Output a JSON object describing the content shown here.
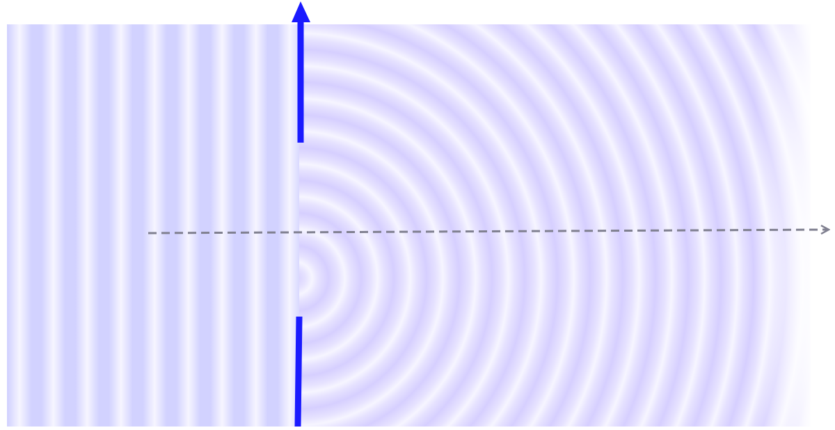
{
  "diagram": {
    "colors": {
      "barrier": "#1a1aff",
      "wave_dark": "#d2d2ff",
      "wave_light": "#f6f5ff",
      "diffracted_base": "#e6e2ff",
      "diffracted_ring": "#d6cfff",
      "axis_arrow": "#808090"
    }
  }
}
